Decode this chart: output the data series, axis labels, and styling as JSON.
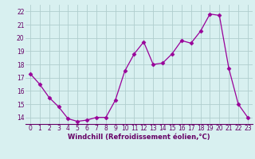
{
  "x": [
    0,
    1,
    2,
    3,
    4,
    5,
    6,
    7,
    8,
    9,
    10,
    11,
    12,
    13,
    14,
    15,
    16,
    17,
    18,
    19,
    20,
    21,
    22,
    23
  ],
  "y": [
    17.3,
    16.5,
    15.5,
    14.8,
    13.9,
    13.7,
    13.8,
    14.0,
    14.0,
    15.3,
    17.5,
    18.8,
    19.7,
    18.0,
    18.1,
    18.8,
    19.8,
    19.6,
    20.5,
    21.8,
    21.7,
    17.7,
    15.0,
    14.0
  ],
  "line_color": "#990099",
  "marker": "D",
  "marker_size": 2.5,
  "bg_color": "#d8f0f0",
  "grid_color": "#b0cece",
  "xlabel": "Windchill (Refroidissement éolien,°C)",
  "xlabel_color": "#660066",
  "tick_color": "#660066",
  "ylim": [
    13.5,
    22.5
  ],
  "xlim": [
    -0.5,
    23.5
  ],
  "yticks": [
    14,
    15,
    16,
    17,
    18,
    19,
    20,
    21,
    22
  ],
  "xticks": [
    0,
    1,
    2,
    3,
    4,
    5,
    6,
    7,
    8,
    9,
    10,
    11,
    12,
    13,
    14,
    15,
    16,
    17,
    18,
    19,
    20,
    21,
    22,
    23
  ],
  "tick_fontsize": 5.5,
  "xlabel_fontsize": 6.0
}
